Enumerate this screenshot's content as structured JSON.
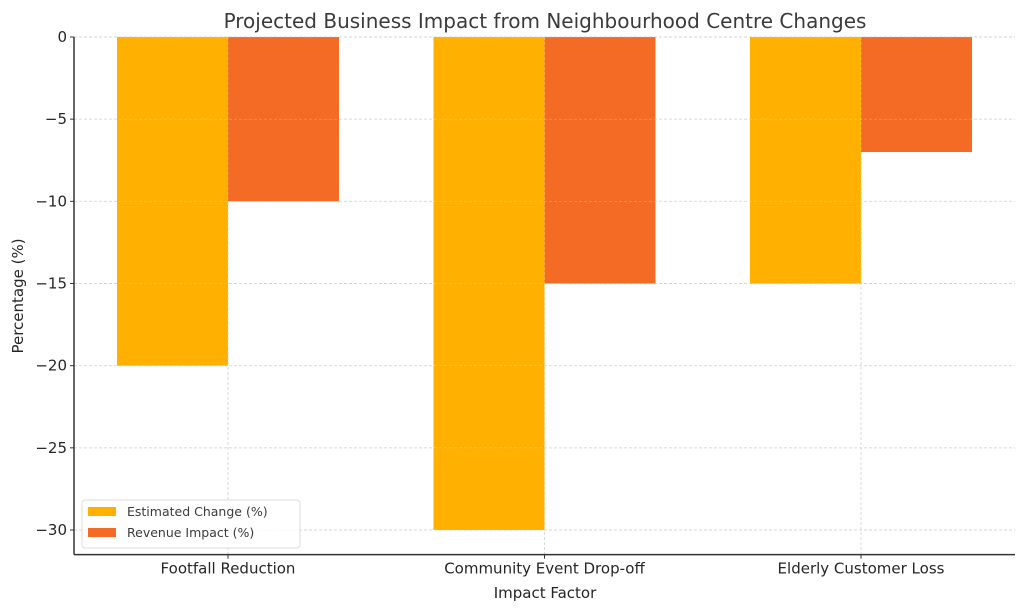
{
  "chart_data": {
    "type": "bar",
    "title": "Projected Business Impact from Neighbourhood Centre Changes",
    "xlabel": "Impact Factor",
    "ylabel": "Percentage (%)",
    "categories": [
      "Footfall Reduction",
      "Community Event Drop-off",
      "Elderly Customer Loss"
    ],
    "series": [
      {
        "name": "Estimated Change (%)",
        "values": [
          -20,
          -30,
          -15
        ],
        "color": "#FFB000"
      },
      {
        "name": "Revenue Impact (%)",
        "values": [
          -10,
          -15,
          -7
        ],
        "color": "#F36B24"
      }
    ],
    "yticks": [
      0,
      -5,
      -10,
      -15,
      -20,
      -25,
      -30
    ],
    "ytick_labels": [
      "0",
      "−5",
      "−10",
      "−15",
      "−20",
      "−25",
      "−30"
    ],
    "ylim": [
      -31.5,
      0
    ],
    "grid": true,
    "legend_position": "lower-left"
  }
}
